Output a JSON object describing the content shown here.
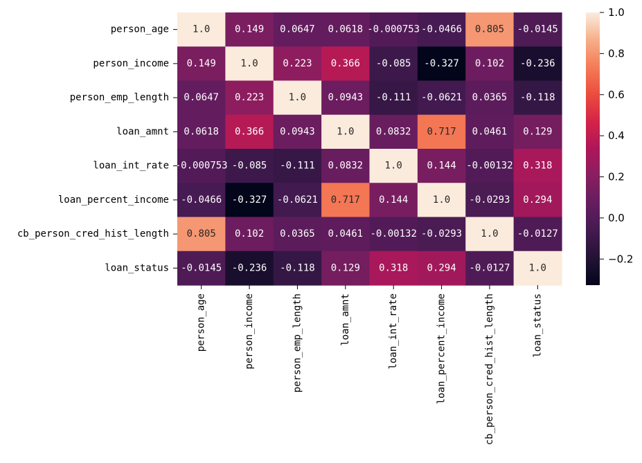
{
  "chart_data": {
    "type": "heatmap",
    "title": "",
    "labels": [
      "person_age",
      "person_income",
      "person_emp_length",
      "loan_amnt",
      "loan_int_rate",
      "loan_percent_income",
      "cb_person_cred_hist_length",
      "loan_status"
    ],
    "values": [
      [
        1.0,
        0.149,
        0.0647,
        0.0618,
        -0.000753,
        -0.0466,
        0.805,
        -0.0145
      ],
      [
        0.149,
        1.0,
        0.223,
        0.366,
        -0.085,
        -0.327,
        0.102,
        -0.236
      ],
      [
        0.0647,
        0.223,
        1.0,
        0.0943,
        -0.111,
        -0.0621,
        0.0365,
        -0.118
      ],
      [
        0.0618,
        0.366,
        0.0943,
        1.0,
        0.0832,
        0.717,
        0.0461,
        0.129
      ],
      [
        -0.000753,
        -0.085,
        -0.111,
        0.0832,
        1.0,
        0.144,
        -0.00132,
        0.318
      ],
      [
        -0.0466,
        -0.327,
        -0.0621,
        0.717,
        0.144,
        1.0,
        -0.0293,
        0.294
      ],
      [
        0.805,
        0.102,
        0.0365,
        0.0461,
        -0.00132,
        -0.0293,
        1.0,
        -0.0127
      ],
      [
        -0.0145,
        -0.236,
        -0.118,
        0.129,
        0.318,
        0.294,
        -0.0127,
        1.0
      ]
    ],
    "annotations": [
      [
        "1.0",
        "0.149",
        "0.0647",
        "0.0618",
        "-0.000753",
        "-0.0466",
        "0.805",
        "-0.0145"
      ],
      [
        "0.149",
        "1.0",
        "0.223",
        "0.366",
        "-0.085",
        "-0.327",
        "0.102",
        "-0.236"
      ],
      [
        "0.0647",
        "0.223",
        "1.0",
        "0.0943",
        "-0.111",
        "-0.0621",
        "0.0365",
        "-0.118"
      ],
      [
        "0.0618",
        "0.366",
        "0.0943",
        "1.0",
        "0.0832",
        "0.717",
        "0.0461",
        "0.129"
      ],
      [
        "-0.000753",
        "-0.085",
        "-0.111",
        "0.0832",
        "1.0",
        "0.144",
        "-0.00132",
        "0.318"
      ],
      [
        "-0.0466",
        "-0.327",
        "-0.0621",
        "0.717",
        "0.144",
        "1.0",
        "-0.0293",
        "0.294"
      ],
      [
        "0.805",
        "0.102",
        "0.0365",
        "0.0461",
        "-0.00132",
        "-0.0293",
        "1.0",
        "-0.0127"
      ],
      [
        "-0.0145",
        "-0.236",
        "-0.118",
        "0.129",
        "0.318",
        "0.294",
        "-0.0127",
        "1.0"
      ]
    ],
    "colormap": "rocket",
    "colorbar": {
      "vmin": -0.327,
      "vmax": 1.0,
      "ticks": [
        1.0,
        0.8,
        0.6,
        0.4,
        0.2,
        0.0,
        -0.2
      ],
      "tick_labels": [
        "1.0",
        "0.8",
        "0.6",
        "0.4",
        "0.2",
        "0.0",
        "−0.2"
      ]
    }
  }
}
